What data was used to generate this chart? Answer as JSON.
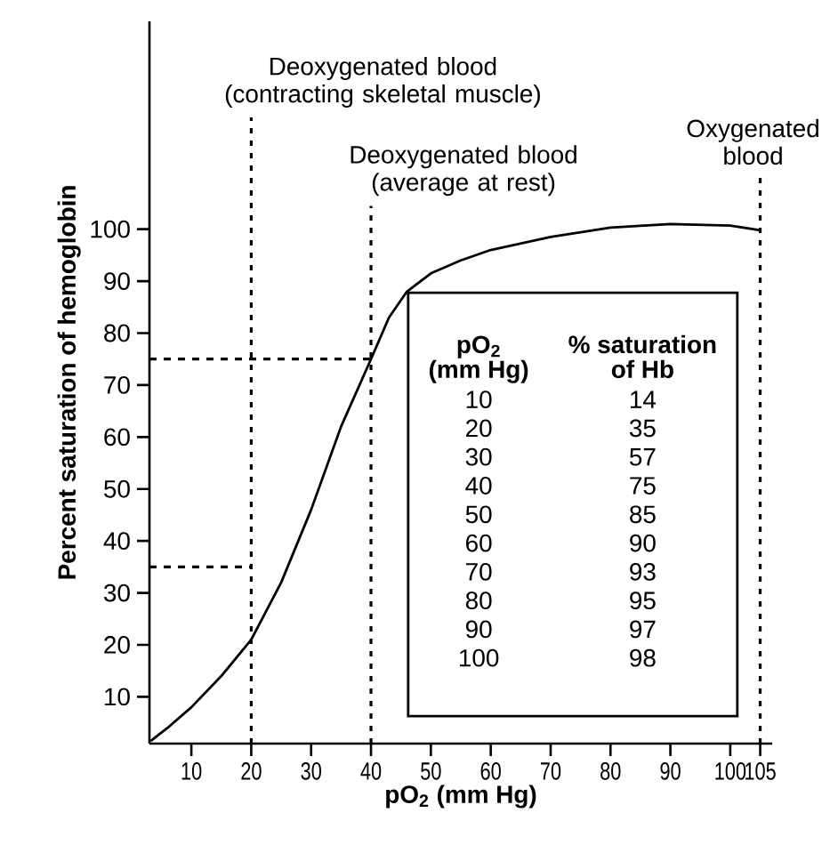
{
  "chart_data": {
    "type": "line",
    "xlabel": "pO$_{2}$ (mm Hg)",
    "ylabel": "Percent saturation of hemoglobin",
    "x": [
      3.2,
      6,
      10,
      15,
      20,
      25,
      30,
      35,
      40,
      43,
      46,
      50,
      55,
      60,
      70,
      80,
      90,
      100,
      105
    ],
    "series": [
      {
        "color": "#000000",
        "values": [
          1.5,
          4,
          8,
          14,
          21,
          32,
          46,
          62,
          75,
          83,
          88,
          91.5,
          94,
          96,
          98.5,
          100.3,
          101,
          100.7,
          99.8
        ]
      }
    ],
    "xlim": [
      3,
      107
    ],
    "ylim": [
      1,
      140
    ],
    "xticks": [
      10,
      20,
      30,
      40,
      50,
      60,
      70,
      80,
      90,
      100,
      105
    ],
    "yticks": [
      10,
      20,
      30,
      40,
      50,
      60,
      70,
      80,
      90,
      100
    ],
    "grid": false,
    "marker": "none",
    "line_style": "solid",
    "ref_lines": [
      {
        "axis": "x",
        "value": 20,
        "label": "Deoxygenated blood (contracting skeletal muscle)",
        "line_style": "dotted"
      },
      {
        "axis": "x",
        "value": 40,
        "label": "Deoxygenated blood (average at rest)",
        "line_style": "dotted"
      },
      {
        "axis": "x",
        "value": 105,
        "label": "Oxygenated blood",
        "line_style": "dotted"
      },
      {
        "axis": "y",
        "value": 35,
        "line_style": "dashed"
      },
      {
        "axis": "y",
        "value": 75,
        "line_style": "dashed"
      }
    ],
    "annotations": [
      "pO$_{2}$",
      "% saturation",
      "(mm Hg)",
      "of Hb",
      "10",
      "14",
      "20",
      "35",
      "30",
      "57",
      "40",
      "75",
      "50",
      "85",
      "60",
      "90",
      "70",
      "93",
      "80",
      "95",
      "90",
      "97",
      "100",
      "98"
    ]
  }
}
